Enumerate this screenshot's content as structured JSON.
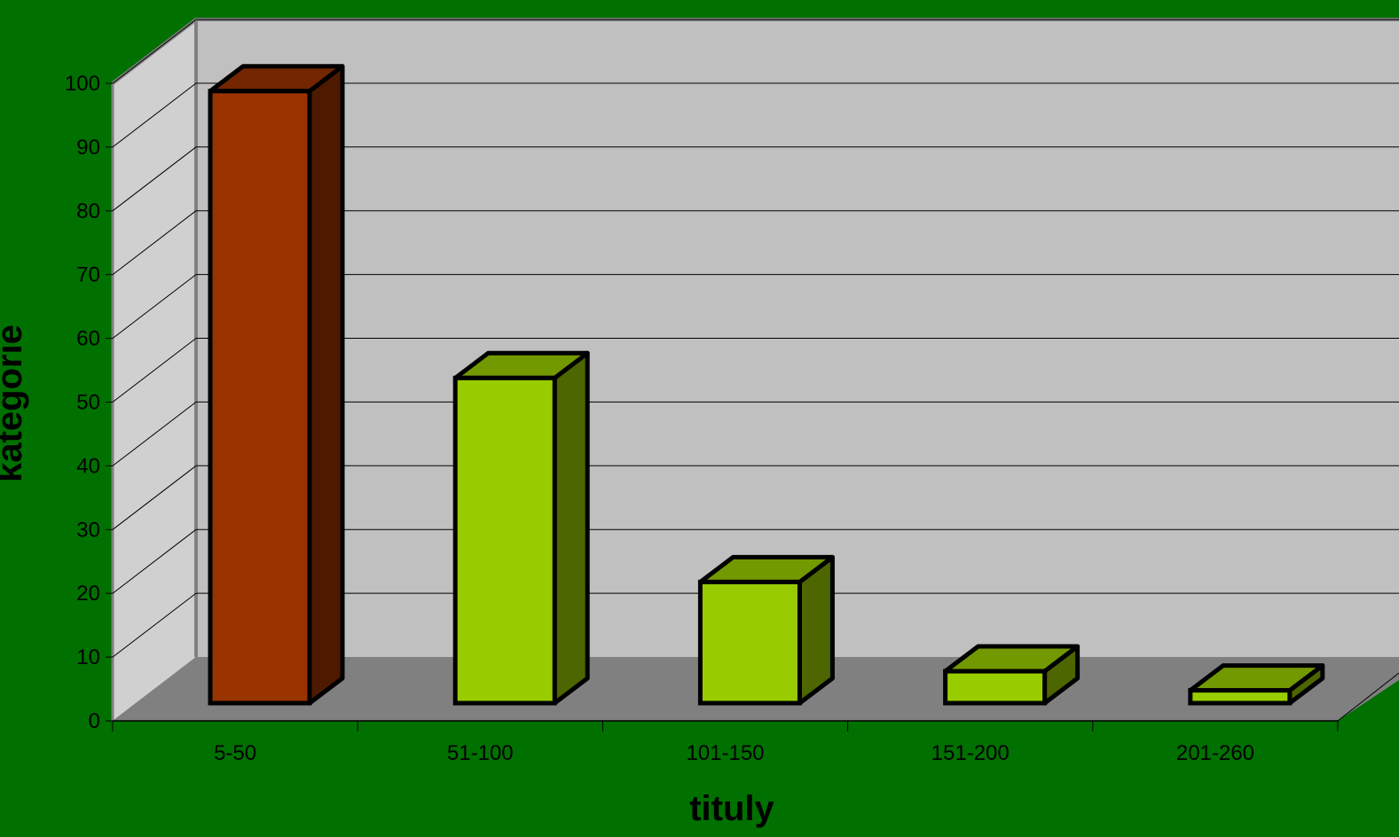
{
  "chart_data": {
    "type": "bar",
    "title": "",
    "xlabel": "tituly",
    "ylabel": "kategorie",
    "categories": [
      "5-50",
      "51-100",
      "101-150",
      "151-200",
      "201-260"
    ],
    "values": [
      96,
      51,
      19,
      5,
      2
    ],
    "ylim": [
      0,
      100
    ],
    "ytick_step": 10,
    "grid": true,
    "legend": "none",
    "three_d": true,
    "colors": {
      "background": "#007000",
      "back_wall": "#c0c0c0",
      "side_wall": "#d0d0d0",
      "floor": "#808080",
      "highlight_bar": "#993300",
      "default_bar": "#99cc00"
    },
    "bar_colors": [
      "#993300",
      "#99cc00",
      "#99cc00",
      "#99cc00",
      "#99cc00"
    ]
  }
}
